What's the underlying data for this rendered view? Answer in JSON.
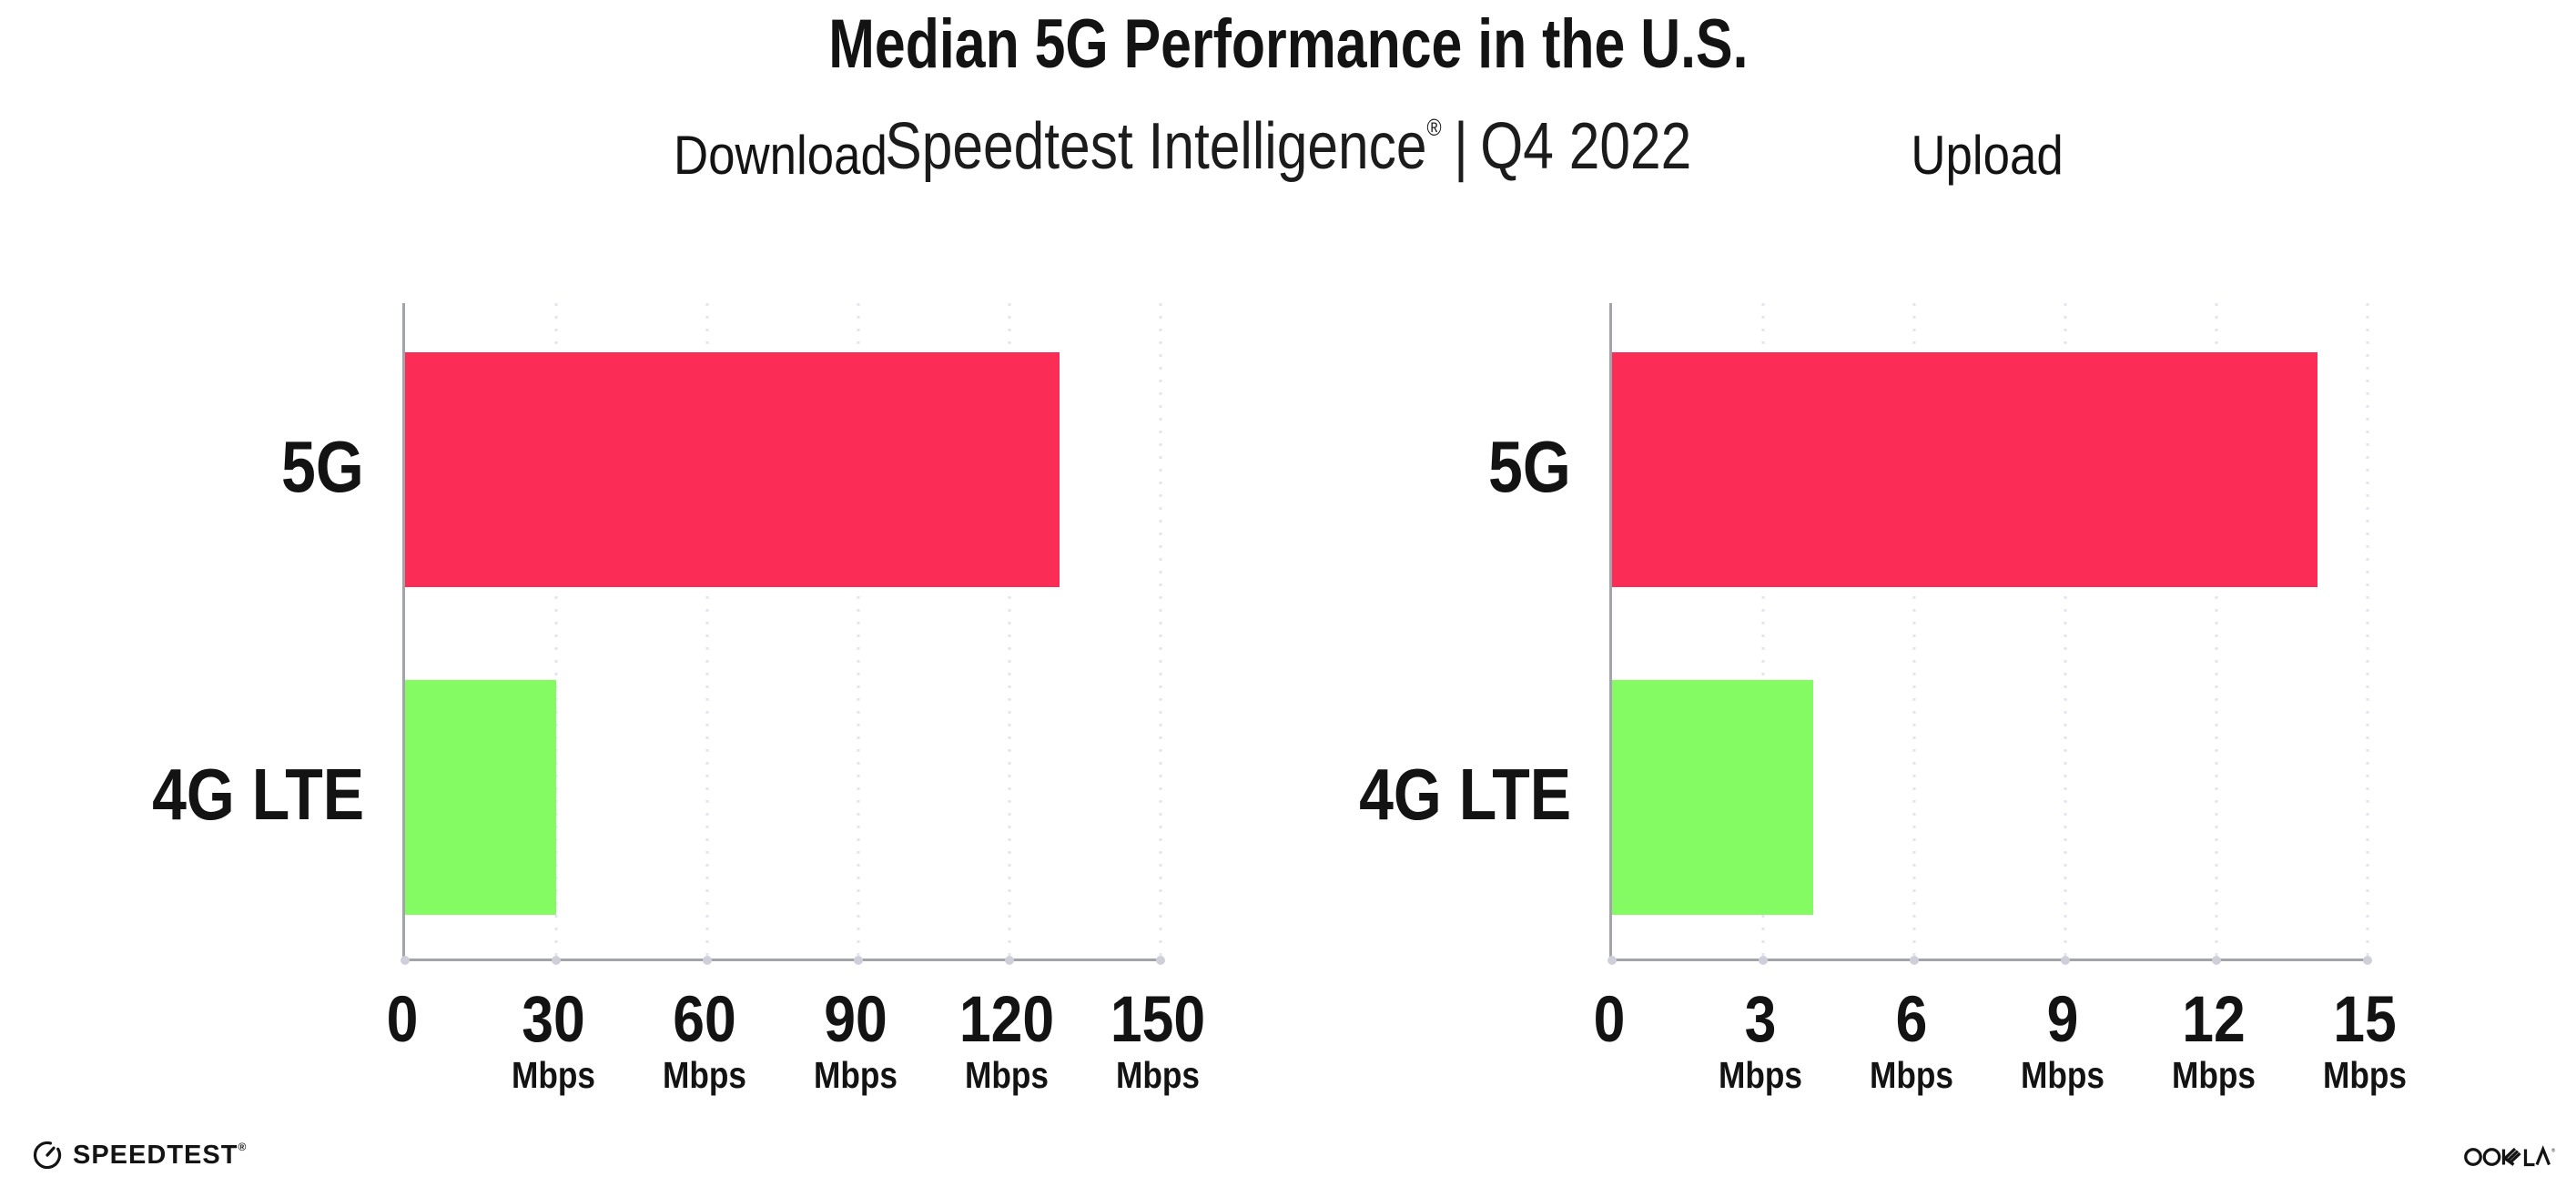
{
  "header": {
    "title": "Median 5G Performance in the U.S.",
    "subtitle_brand": "Speedtest Intelligence",
    "subtitle_registered": "®",
    "subtitle_separator": "|",
    "subtitle_period": "Q4 2022"
  },
  "footer": {
    "speedtest_label": "SPEEDTEST",
    "speedtest_trademark": "®",
    "ookla_label": "OOKLA",
    "ookla_trademark": "®"
  },
  "colors": {
    "bar_5g": "#FB2D56",
    "bar_4g_lte": "#85FB63",
    "axis_line": "#A3A3AA",
    "gridline_dot": "#E4E4EE",
    "axis_tick_dot": "#CFCFDC",
    "text": "#131313"
  },
  "chart_data": [
    {
      "type": "bar",
      "orientation": "horizontal",
      "title": "Download",
      "categories": [
        "5G",
        "4G LTE"
      ],
      "values": [
        130,
        30
      ],
      "unit": "Mbps",
      "xlabel": "",
      "ylabel": "",
      "xlim": [
        0,
        150
      ],
      "xticks": [
        0,
        30,
        60,
        90,
        120,
        150
      ],
      "bar_colors": [
        "#FB2D56",
        "#85FB63"
      ],
      "grid": "vertical-dotted",
      "legend": "none"
    },
    {
      "type": "bar",
      "orientation": "horizontal",
      "title": "Upload",
      "categories": [
        "5G",
        "4G LTE"
      ],
      "values": [
        14,
        4
      ],
      "unit": "Mbps",
      "xlabel": "",
      "ylabel": "",
      "xlim": [
        0,
        15
      ],
      "xticks": [
        0,
        3,
        6,
        9,
        12,
        15
      ],
      "bar_colors": [
        "#FB2D56",
        "#85FB63"
      ],
      "grid": "vertical-dotted",
      "legend": "none"
    }
  ]
}
